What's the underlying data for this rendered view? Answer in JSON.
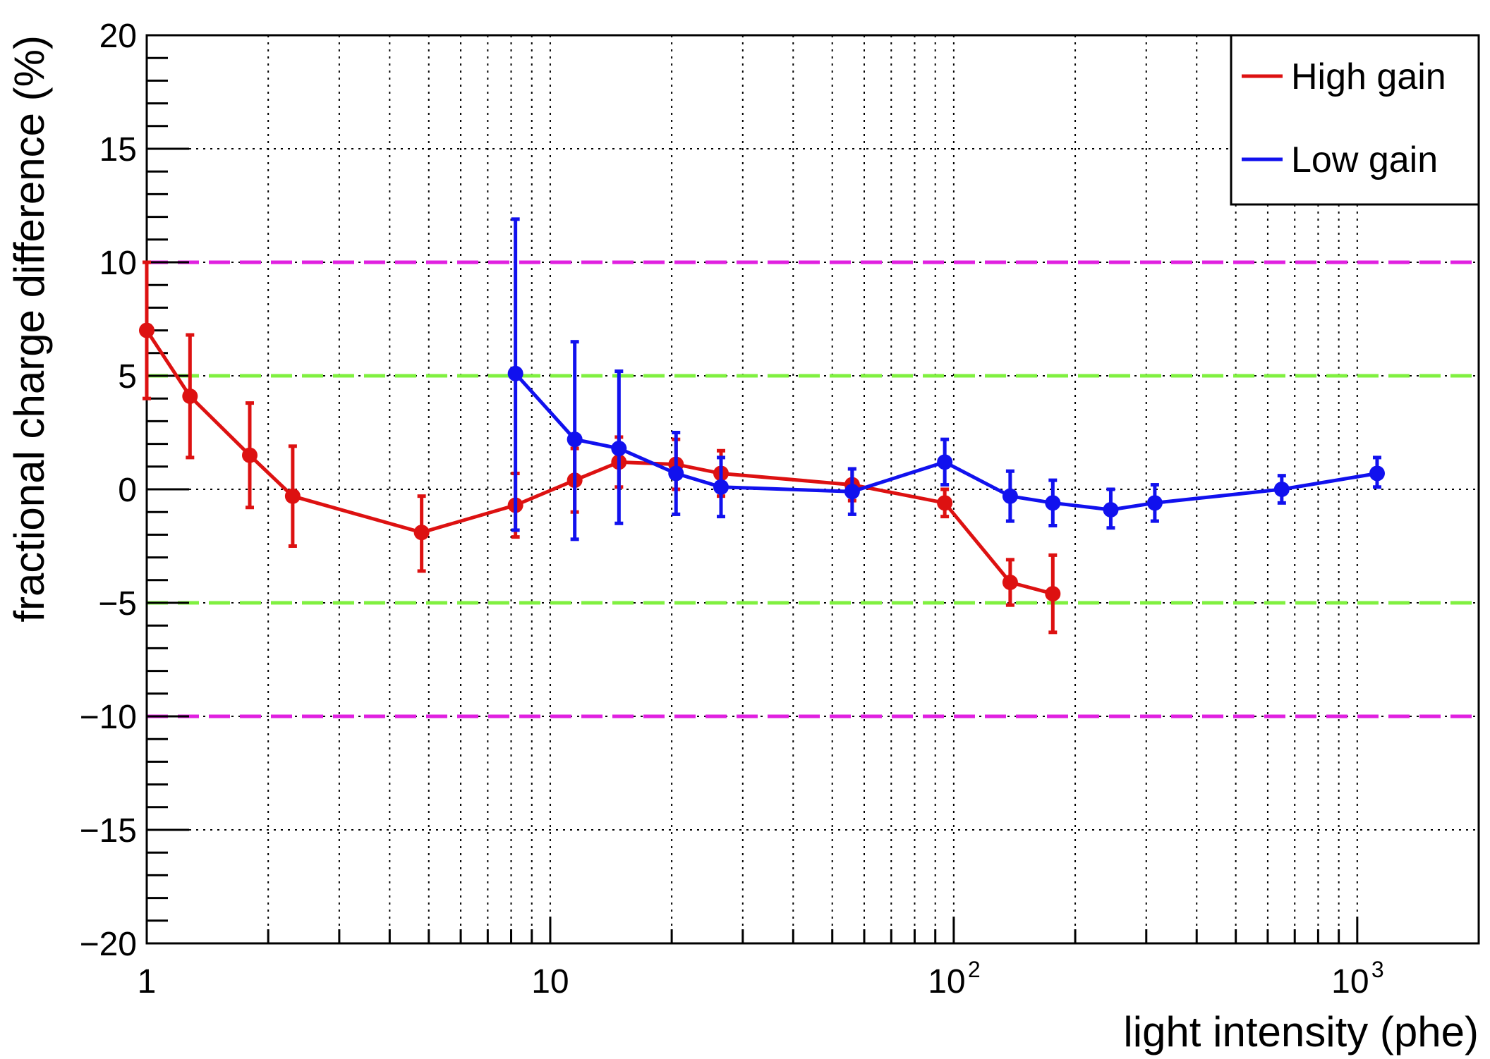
{
  "chart_data": {
    "type": "line",
    "xlabel": "light intensity (phe)",
    "ylabel": "fractional charge difference (%)",
    "xscale": "log",
    "xlim": [
      1,
      2000
    ],
    "ylim": [
      -20,
      20
    ],
    "grid": true,
    "legend_position": "top-right",
    "x_tick_labels": [
      {
        "value": 1,
        "base": "1",
        "exp": ""
      },
      {
        "value": 10,
        "base": "10",
        "exp": ""
      },
      {
        "value": 100,
        "base": "10",
        "exp": "2"
      },
      {
        "value": 1000,
        "base": "10",
        "exp": "3"
      }
    ],
    "y_tick_labels": [
      {
        "value": 20,
        "label": "20"
      },
      {
        "value": 15,
        "label": "15"
      },
      {
        "value": 10,
        "label": "10"
      },
      {
        "value": 5,
        "label": "5"
      },
      {
        "value": 0,
        "label": "0"
      },
      {
        "value": -5,
        "label": "−5"
      },
      {
        "value": -10,
        "label": "−10"
      },
      {
        "value": -15,
        "label": "−15"
      },
      {
        "value": -20,
        "label": "−20"
      }
    ],
    "reference_lines": [
      {
        "y": 10,
        "color": "#e020e0"
      },
      {
        "y": -10,
        "color": "#e020e0"
      },
      {
        "y": 5,
        "color": "#80f040"
      },
      {
        "y": -5,
        "color": "#80f040"
      }
    ],
    "series": [
      {
        "name": "High gain",
        "color": "#dd1111",
        "points": [
          {
            "x": 1.0,
            "y": 7.0,
            "lo": 4.0,
            "hi": 10.0
          },
          {
            "x": 1.28,
            "y": 4.1,
            "lo": 1.4,
            "hi": 6.8
          },
          {
            "x": 1.8,
            "y": 1.5,
            "lo": -0.8,
            "hi": 3.8
          },
          {
            "x": 2.3,
            "y": -0.3,
            "lo": -2.5,
            "hi": 1.9
          },
          {
            "x": 4.8,
            "y": -1.9,
            "lo": -3.6,
            "hi": -0.3
          },
          {
            "x": 8.2,
            "y": -0.7,
            "lo": -2.1,
            "hi": 0.7
          },
          {
            "x": 11.5,
            "y": 0.4,
            "lo": -1.0,
            "hi": 1.8
          },
          {
            "x": 14.8,
            "y": 1.2,
            "lo": 0.1,
            "hi": 2.3
          },
          {
            "x": 20.5,
            "y": 1.1,
            "lo": 0.0,
            "hi": 2.2
          },
          {
            "x": 26.5,
            "y": 0.7,
            "lo": -0.3,
            "hi": 1.7
          },
          {
            "x": 56.0,
            "y": 0.2,
            "lo": -0.5,
            "hi": 0.9
          },
          {
            "x": 95.0,
            "y": -0.6,
            "lo": -1.2,
            "hi": 0.0
          },
          {
            "x": 138.0,
            "y": -4.1,
            "lo": -5.1,
            "hi": -3.1
          },
          {
            "x": 176.0,
            "y": -4.6,
            "lo": -6.3,
            "hi": -2.9
          }
        ]
      },
      {
        "name": "Low gain",
        "color": "#1111ee",
        "points": [
          {
            "x": 8.2,
            "y": 5.1,
            "lo": -1.8,
            "hi": 11.9
          },
          {
            "x": 11.5,
            "y": 2.2,
            "lo": -2.2,
            "hi": 6.5
          },
          {
            "x": 14.8,
            "y": 1.8,
            "lo": -1.5,
            "hi": 5.2
          },
          {
            "x": 20.5,
            "y": 0.7,
            "lo": -1.1,
            "hi": 2.5
          },
          {
            "x": 26.5,
            "y": 0.1,
            "lo": -1.2,
            "hi": 1.4
          },
          {
            "x": 56.0,
            "y": -0.1,
            "lo": -1.1,
            "hi": 0.9
          },
          {
            "x": 95.0,
            "y": 1.2,
            "lo": 0.2,
            "hi": 2.2
          },
          {
            "x": 138.0,
            "y": -0.3,
            "lo": -1.4,
            "hi": 0.8
          },
          {
            "x": 176.0,
            "y": -0.6,
            "lo": -1.6,
            "hi": 0.4
          },
          {
            "x": 245.0,
            "y": -0.9,
            "lo": -1.7,
            "hi": 0.0
          },
          {
            "x": 315.0,
            "y": -0.6,
            "lo": -1.4,
            "hi": 0.2
          },
          {
            "x": 650.0,
            "y": 0.0,
            "lo": -0.6,
            "hi": 0.6
          },
          {
            "x": 1120.0,
            "y": 0.7,
            "lo": 0.1,
            "hi": 1.4
          }
        ]
      }
    ]
  }
}
